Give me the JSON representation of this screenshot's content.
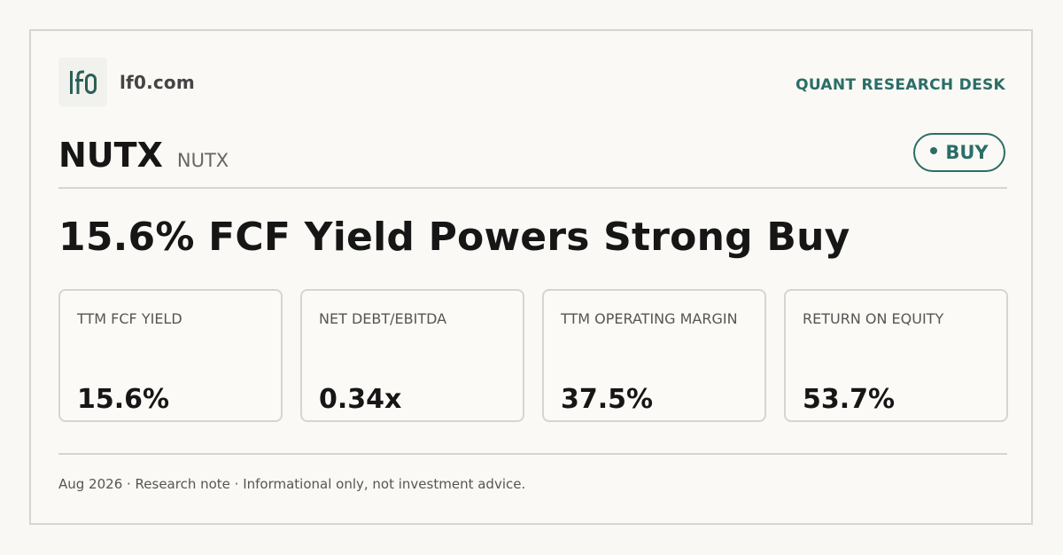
{
  "brand": {
    "logo_text": "lf0",
    "domain": "lf0.com",
    "desk": "QUANT RESEARCH DESK"
  },
  "ticker": {
    "symbol": "NUTX",
    "name": "NUTX"
  },
  "rating": {
    "label": "BUY",
    "color": "#2b6d67"
  },
  "headline": "15.6% FCF Yield Powers Strong Buy",
  "metrics": [
    {
      "label": "TTM FCF YIELD",
      "value": "15.6%"
    },
    {
      "label": "NET DEBT/EBITDA",
      "value": "0.34x"
    },
    {
      "label": "TTM OPERATING MARGIN",
      "value": "37.5%"
    },
    {
      "label": "RETURN ON EQUITY",
      "value": "53.7%"
    }
  ],
  "footer": "Aug 2026 · Research note · Informational only, not investment advice."
}
